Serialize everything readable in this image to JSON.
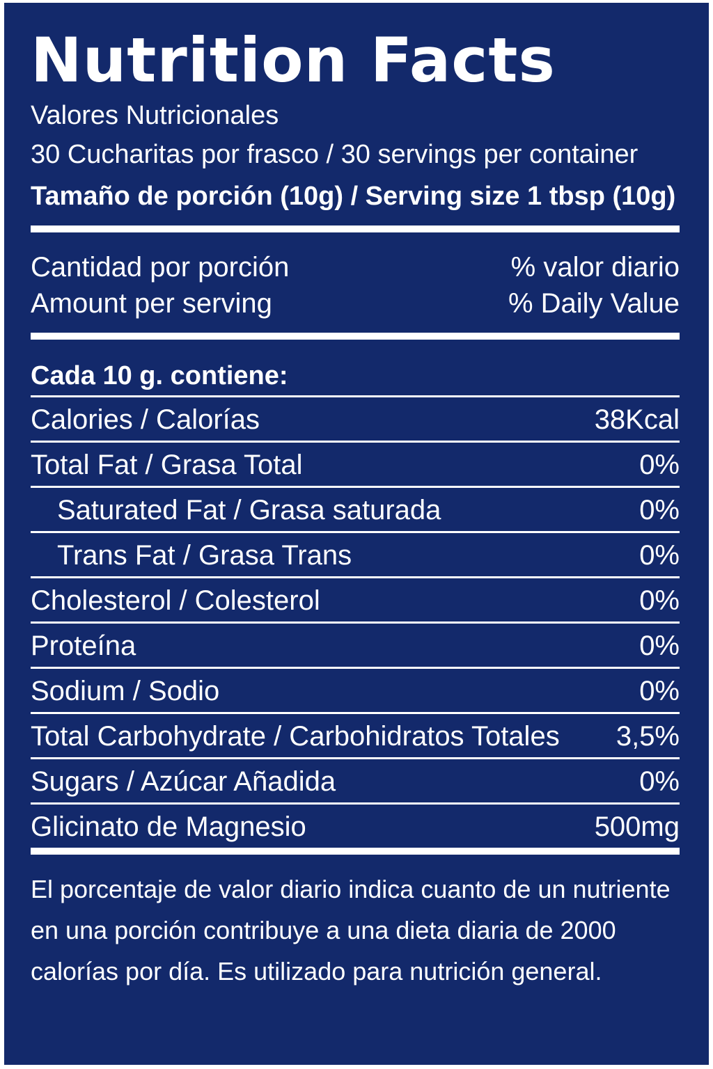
{
  "label": {
    "title": "Nutrition Facts",
    "subtitle": "Valores Nutricionales",
    "servings_per_container": "30 Cucharitas por frasco /  30 servings per container",
    "serving_size": "Tamaño de porción (10g)  / Serving size 1 tbsp (10g)",
    "header": {
      "amount_es": "Cantidad por porción",
      "amount_en": "Amount per serving",
      "dv_es": "% valor diario",
      "dv_en": "% Daily Value"
    },
    "section_title": "Cada 10 g. contiene:",
    "rows": [
      {
        "name": "Calories / Calorías",
        "value": "38Kcal",
        "indent": false
      },
      {
        "name": "Total Fat / Grasa Total",
        "value": "0%",
        "indent": false
      },
      {
        "name": "Saturated Fat / Grasa saturada",
        "value": "0%",
        "indent": true
      },
      {
        "name": "Trans Fat / Grasa Trans",
        "value": "0%",
        "indent": true
      },
      {
        "name": "Cholesterol / Colesterol",
        "value": "0%",
        "indent": false
      },
      {
        "name": "Proteína",
        "value": "0%",
        "indent": false
      },
      {
        "name": "Sodium / Sodio",
        "value": "0%",
        "indent": false
      },
      {
        "name": "Total Carbohydrate / Carbohidratos Totales",
        "value": "3,5%",
        "indent": false
      },
      {
        "name": "Sugars / Azúcar Añadida",
        "value": "0%",
        "indent": false
      },
      {
        "name": "Glicinato de Magnesio",
        "value": "500mg",
        "indent": false
      }
    ],
    "footnote": [
      "El porcentaje de valor diario indica cuanto de un nutriente",
      "en una porción contribuye a una dieta diaria de 2000",
      "calorías por día. Es utilizado para nutrición general."
    ]
  },
  "colors": {
    "background": "#13296b",
    "text": "#ffffff"
  }
}
